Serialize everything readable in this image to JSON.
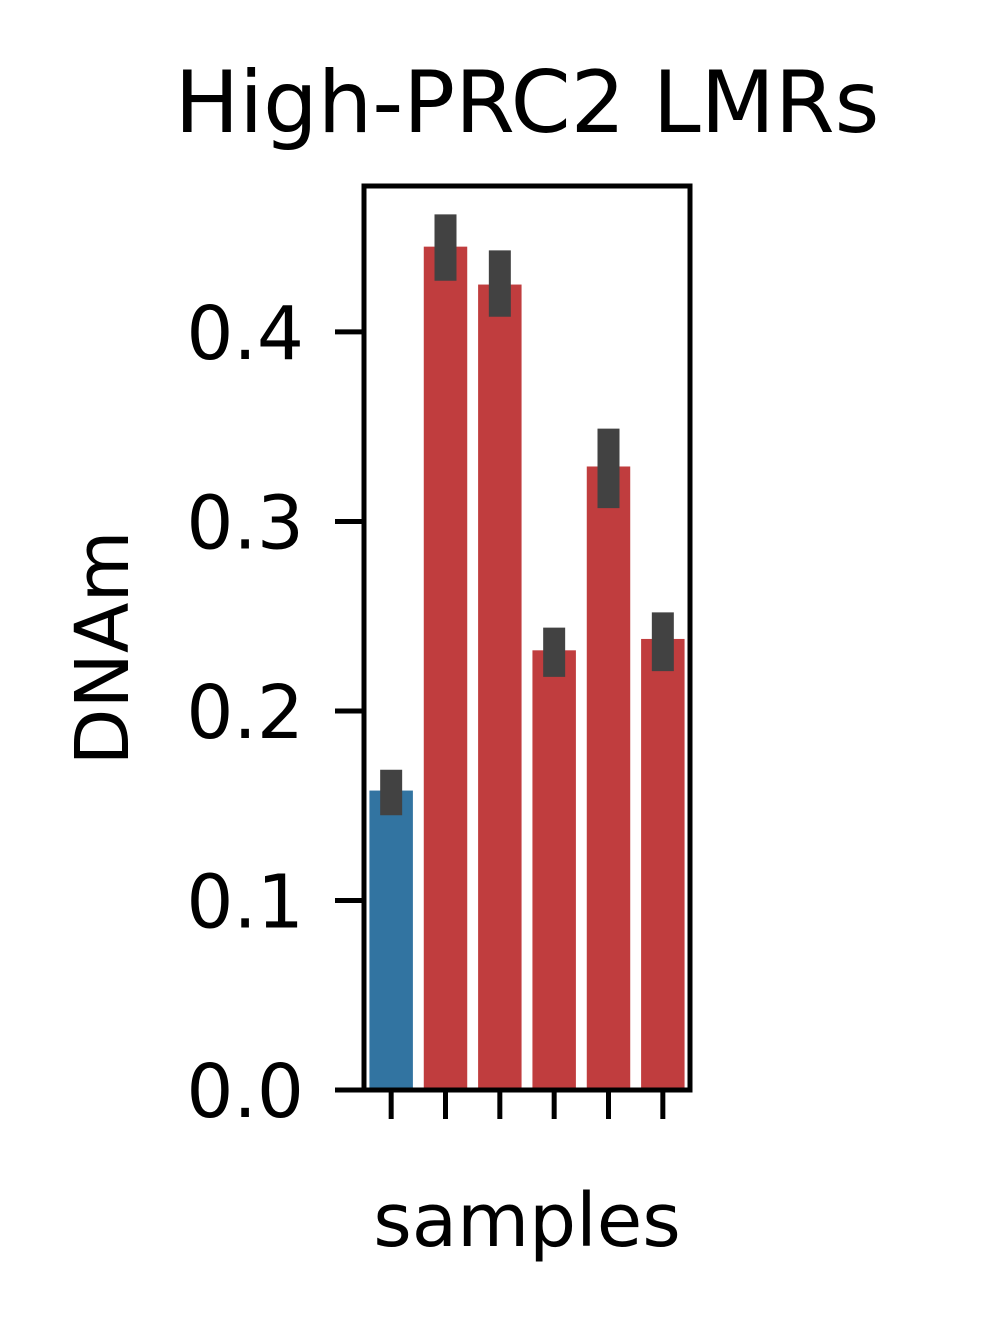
{
  "chart_data": {
    "type": "bar",
    "title": "High-PRC2 LMRs",
    "xlabel": "samples",
    "ylabel": "DNAm",
    "ylim": [
      0,
      0.477
    ],
    "yticks": [
      0.0,
      0.1,
      0.2,
      0.3,
      0.4
    ],
    "ytick_labels": [
      "0.0",
      "0.1",
      "0.2",
      "0.3",
      "0.4"
    ],
    "categories": [
      "",
      "",
      "",
      "",
      "",
      ""
    ],
    "values": [
      0.158,
      0.445,
      0.425,
      0.232,
      0.329,
      0.238
    ],
    "error_low": [
      0.145,
      0.427,
      0.408,
      0.218,
      0.307,
      0.221
    ],
    "error_high": [
      0.169,
      0.462,
      0.443,
      0.244,
      0.349,
      0.252
    ],
    "bar_colors": [
      "#3274a1",
      "#c03d3e",
      "#c03d3e",
      "#c03d3e",
      "#c03d3e",
      "#c03d3e"
    ],
    "error_color": "#424242",
    "grid": false,
    "legend": "none"
  }
}
